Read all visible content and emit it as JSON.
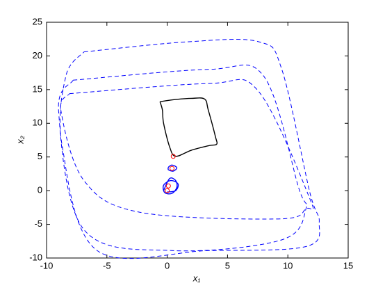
{
  "chart_data": {
    "type": "line",
    "xlabel": "x₁",
    "ylabel": "x₂",
    "xlim": [
      -10,
      15
    ],
    "xticks": [
      -10,
      -5,
      0,
      5,
      10,
      15
    ],
    "ylim": [
      -10,
      25
    ],
    "yticks": [
      -10,
      -5,
      0,
      5,
      10,
      15,
      20,
      25
    ],
    "series": [
      {
        "color": "#0000ff",
        "style": "dashed",
        "x": [
          -6.9,
          1.7,
          7.6,
          9.5,
          11.8,
          12.6,
          11.5,
          3.4,
          -5.8,
          -8.7,
          -8.4,
          -6.9
        ],
        "y": [
          20.6,
          22.1,
          22.1,
          18,
          -0.1,
          -4.7,
          -8.3,
          -8.9,
          -8.9,
          6.6,
          17,
          20.6
        ]
      },
      {
        "color": "#0000ff",
        "style": "dashed",
        "x": [
          -7.8,
          3.4,
          8,
          10.9,
          11.5,
          9.5,
          0.5,
          -6.9,
          -9,
          -7.8
        ],
        "y": [
          16.4,
          18,
          17,
          0.4,
          -2.7,
          -7.3,
          -8.9,
          -5.8,
          11.8,
          16.4
        ]
      },
      {
        "color": "#0000ff",
        "style": "dashed",
        "x": [
          -8.1,
          3.4,
          7.5,
          11.8,
          11.5,
          9.2,
          -2.3,
          -6.9,
          -8.8,
          -8.1
        ],
        "y": [
          14.4,
          15.9,
          14.9,
          -1.1,
          -2.7,
          -4.2,
          -3.2,
          1.5,
          11.8,
          14.4
        ]
      },
      {
        "color": "#000000",
        "style": "solid",
        "x": [
          -0.6,
          0.5,
          2,
          3.1,
          3.4,
          4,
          4.1,
          3.5,
          2,
          0.7,
          0.2,
          -0.3,
          -0.4,
          -0.6
        ],
        "y": [
          13.2,
          13.5,
          13.7,
          13.6,
          12,
          8,
          6.9,
          6.7,
          6,
          5.1,
          6.5,
          10,
          12,
          13.2
        ]
      },
      {
        "color": "#0000ff",
        "style": "solid",
        "x": [
          0.1,
          0.4,
          0.8,
          0.5,
          0.1,
          0.1
        ],
        "y": [
          3.5,
          3.8,
          3.4,
          2.9,
          3.1,
          3.5
        ]
      },
      {
        "color": "#0000ff",
        "style": "solid",
        "x": [
          -0.3,
          0.2,
          0.7,
          0.8,
          0.4,
          -0.2,
          -0.3,
          0.3,
          0.9,
          0.7,
          0
        ],
        "y": [
          0,
          1.8,
          1.5,
          0.5,
          -0.4,
          -0.3,
          0.8,
          1.5,
          1.0,
          0,
          -0.2
        ]
      },
      {
        "color": "#ff0000",
        "style": "marker",
        "x": [
          0.5,
          0.4,
          0.1,
          0
        ],
        "y": [
          5.1,
          3.3,
          0.7,
          0
        ]
      }
    ]
  }
}
